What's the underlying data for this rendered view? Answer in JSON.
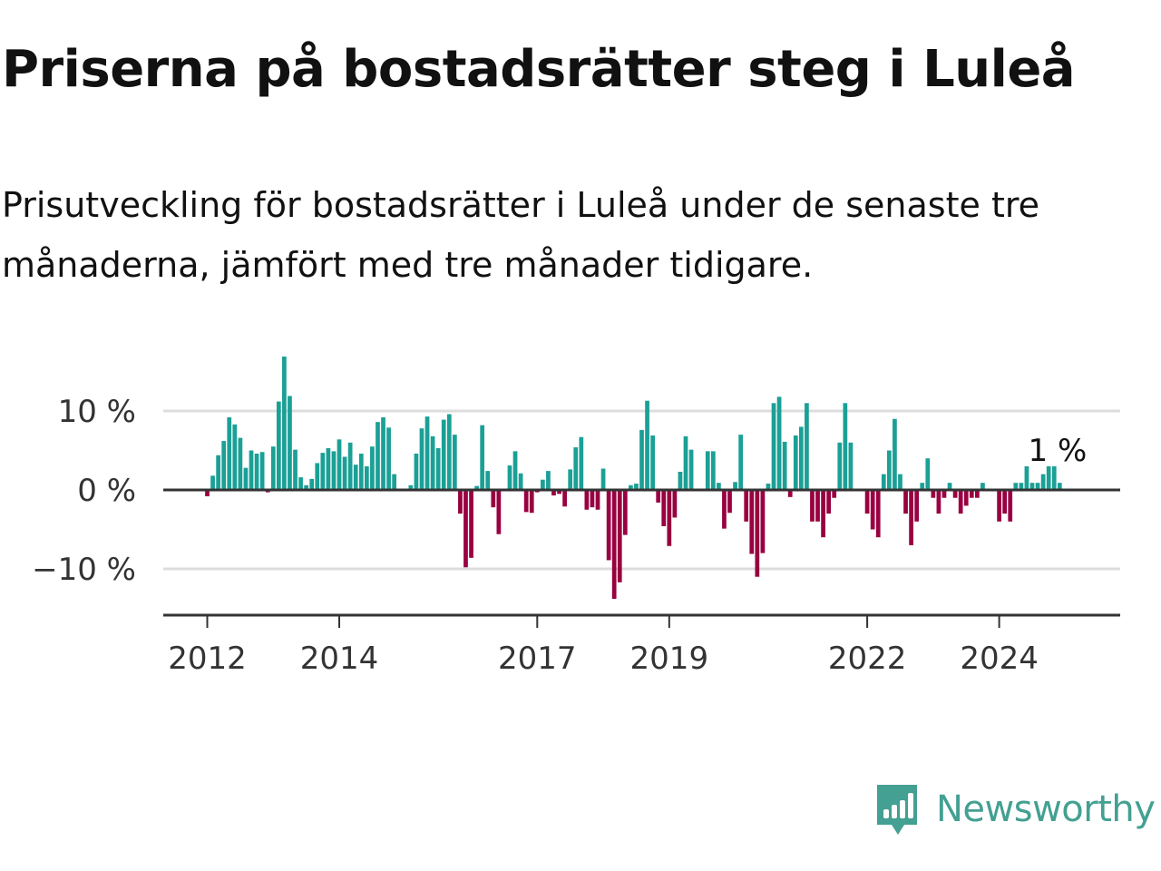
{
  "title": "Priserna på bostadsrätter steg i Luleå",
  "subtitle": "Prisutveckling för bostadsrätter i Luleå under de senaste tre månaderna, jämfört med tre månader tidigare.",
  "brand": {
    "name": "Newsworthy",
    "color": "#43a092",
    "icon": "chart-bubble-icon"
  },
  "colors": {
    "positive": "#1ba096",
    "negative": "#990041",
    "grid": "#dddddd",
    "axis": "#333333"
  },
  "chart_data": {
    "type": "bar",
    "title": "Priserna på bostadsrätter steg i Luleå",
    "xlabel": "",
    "ylabel": "",
    "y_unit": "%",
    "ylim": [
      -16,
      16
    ],
    "yticks": [
      -10,
      0,
      10
    ],
    "ytick_labels": [
      "−10 %",
      "0 %",
      "10 %"
    ],
    "xlim": [
      "2011-05",
      "2025-11"
    ],
    "xticks": [
      "2012-01",
      "2014-01",
      "2017-01",
      "2019-01",
      "2022-01",
      "2024-01"
    ],
    "xtick_labels": [
      "2012",
      "2014",
      "2017",
      "2019",
      "2022",
      "2024"
    ],
    "grid": true,
    "last_value_label": "1 %",
    "months": [
      "2012-01",
      "2012-02",
      "2012-03",
      "2012-04",
      "2012-05",
      "2012-06",
      "2012-07",
      "2012-08",
      "2012-09",
      "2012-10",
      "2012-11",
      "2012-12",
      "2013-01",
      "2013-02",
      "2013-03",
      "2013-04",
      "2013-05",
      "2013-06",
      "2013-07",
      "2013-08",
      "2013-09",
      "2013-10",
      "2013-11",
      "2013-12",
      "2014-01",
      "2014-02",
      "2014-03",
      "2014-04",
      "2014-05",
      "2014-06",
      "2014-07",
      "2014-08",
      "2014-09",
      "2014-10",
      "2014-11",
      "2014-12",
      "2015-01",
      "2015-02",
      "2015-03",
      "2015-04",
      "2015-05",
      "2015-06",
      "2015-07",
      "2015-08",
      "2015-09",
      "2015-10",
      "2015-11",
      "2015-12",
      "2016-01",
      "2016-02",
      "2016-03",
      "2016-04",
      "2016-05",
      "2016-06",
      "2016-07",
      "2016-08",
      "2016-09",
      "2016-10",
      "2016-11",
      "2016-12",
      "2017-01",
      "2017-02",
      "2017-03",
      "2017-04",
      "2017-05",
      "2017-06",
      "2017-07",
      "2017-08",
      "2017-09",
      "2017-10",
      "2017-11",
      "2017-12",
      "2018-01",
      "2018-02",
      "2018-03",
      "2018-04",
      "2018-05",
      "2018-06",
      "2018-07",
      "2018-08",
      "2018-09",
      "2018-10",
      "2018-11",
      "2018-12",
      "2019-01",
      "2019-02",
      "2019-03",
      "2019-04",
      "2019-05",
      "2019-06",
      "2019-07",
      "2019-08",
      "2019-09",
      "2019-10",
      "2019-11",
      "2019-12",
      "2020-01",
      "2020-02",
      "2020-03",
      "2020-04",
      "2020-05",
      "2020-06",
      "2020-07",
      "2020-08",
      "2020-09",
      "2020-10",
      "2020-11",
      "2020-12",
      "2021-01",
      "2021-02",
      "2021-03",
      "2021-04",
      "2021-05",
      "2021-06",
      "2021-07",
      "2021-08",
      "2021-09",
      "2021-10",
      "2021-11",
      "2021-12",
      "2022-01",
      "2022-02",
      "2022-03",
      "2022-04",
      "2022-05",
      "2022-06",
      "2022-07",
      "2022-08",
      "2022-09",
      "2022-10",
      "2022-11",
      "2022-12",
      "2023-01",
      "2023-02",
      "2023-03",
      "2023-04",
      "2023-05",
      "2023-06",
      "2023-07",
      "2023-08",
      "2023-09",
      "2023-10",
      "2023-11",
      "2023-12",
      "2024-01",
      "2024-02",
      "2024-03",
      "2024-04",
      "2024-05",
      "2024-06",
      "2024-07",
      "2024-08",
      "2024-09",
      "2024-10",
      "2024-11",
      "2024-12"
    ],
    "values": [
      -0.8,
      1.8,
      4.4,
      6.2,
      9.2,
      8.3,
      6.6,
      2.8,
      5.0,
      4.6,
      4.8,
      -0.3,
      5.5,
      11.2,
      16.9,
      11.9,
      5.1,
      1.6,
      0.6,
      1.4,
      3.4,
      4.7,
      5.3,
      4.9,
      6.4,
      4.2,
      6.0,
      3.2,
      4.6,
      3.0,
      5.5,
      8.6,
      9.2,
      7.9,
      2.0,
      0,
      0,
      0.6,
      4.6,
      7.8,
      9.3,
      6.8,
      5.3,
      8.9,
      9.6,
      7.0,
      -3.0,
      -9.8,
      -8.6,
      0.5,
      8.2,
      2.4,
      -2.2,
      -5.6,
      0,
      3.1,
      4.9,
      2.1,
      -2.8,
      -2.9,
      -0.3,
      1.3,
      2.4,
      -0.7,
      -0.5,
      -2.1,
      2.6,
      5.4,
      6.7,
      -2.5,
      -2.2,
      -2.5,
      2.7,
      -8.9,
      -13.8,
      -11.7,
      -5.7,
      0.6,
      0.8,
      7.6,
      11.3,
      6.9,
      -1.6,
      -4.6,
      -7.1,
      -3.5,
      2.3,
      6.8,
      5.1,
      0,
      0,
      4.9,
      4.9,
      0.9,
      -4.9,
      -2.9,
      1.0,
      7.0,
      -4.0,
      -8.1,
      -11.0,
      -8.0,
      0.8,
      11.0,
      11.8,
      6.1,
      -0.9,
      6.9,
      8.0,
      11.0,
      -4.0,
      -4.0,
      -6.0,
      -3.0,
      -1.0,
      6.0,
      11.0,
      6.0,
      0,
      0,
      -3.0,
      -5.0,
      -6.0,
      2.0,
      5.0,
      9.0,
      2.0,
      -3.0,
      -7.0,
      -4.0,
      0.9,
      4.0,
      -1.0,
      -3.0,
      -1.0,
      0.9,
      -1.0,
      -3.0,
      -2.0,
      -1.0,
      -1.0,
      0.9,
      0,
      0,
      -4.0,
      -3.0,
      -4.0,
      0.9,
      0.9,
      3.0,
      0.9,
      0.9,
      2.0,
      3.0,
      3.0,
      0.9
    ]
  }
}
